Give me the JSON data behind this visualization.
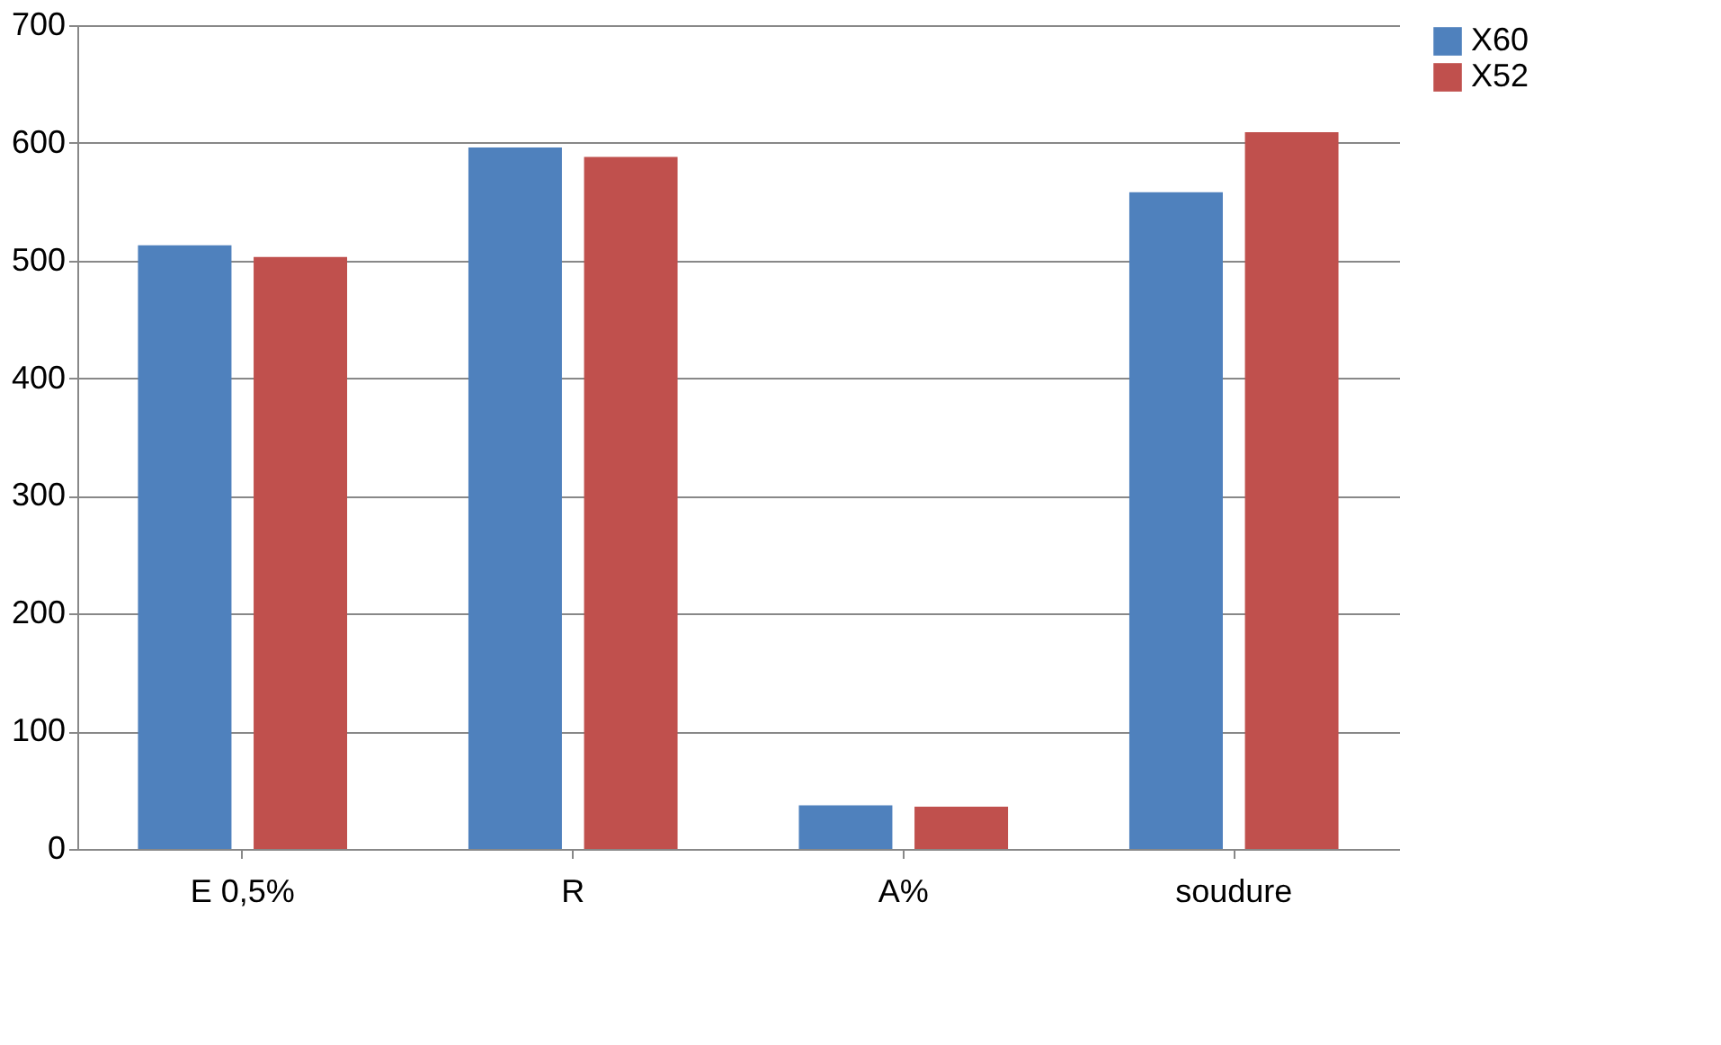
{
  "chart_data": {
    "type": "bar",
    "categories": [
      "E 0,5%",
      "R",
      "A%",
      "soudure"
    ],
    "series": [
      {
        "name": "X60",
        "color": "#4f81bd",
        "values": [
          513,
          596,
          37,
          558
        ]
      },
      {
        "name": "X52",
        "color": "#c0504d",
        "values": [
          503,
          588,
          36,
          609
        ]
      }
    ],
    "ylim": [
      0,
      700
    ],
    "yticks": [
      0,
      100,
      200,
      300,
      400,
      500,
      600,
      700
    ],
    "grid": "y",
    "legend": "right"
  }
}
